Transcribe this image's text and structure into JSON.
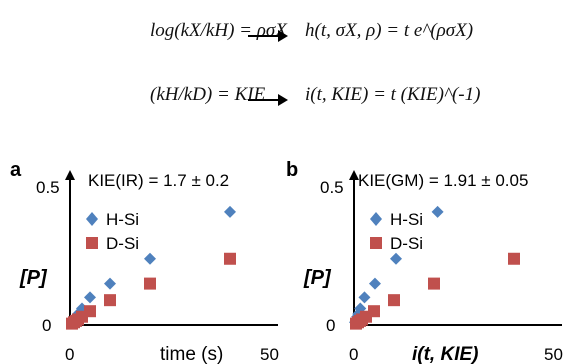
{
  "equations": {
    "eq1_lhs": "log(kX/kH) = ρσX",
    "eq1_rhs": "h(t, σX, ρ) = t e^(ρσX)",
    "eq2_lhs": "(kH/kD) = KIE",
    "eq2_rhs": "i(t, KIE) = t (KIE)^(-1)"
  },
  "legend": {
    "h": "H-Si",
    "d": "D-Si"
  },
  "colors": {
    "h": "#4f81bd",
    "d": "#c0504d"
  },
  "chart_data": [
    {
      "type": "scatter",
      "panel": "a",
      "title": "KIE(IR) = 1.7 ± 0.2",
      "xlabel": "time (s)",
      "ylabel": "[P]",
      "x_ticks": [
        "0",
        "50"
      ],
      "y_ticks": [
        "0",
        "0.5"
      ],
      "xlim": [
        0,
        50
      ],
      "ylim": [
        0,
        0.5
      ],
      "series": [
        {
          "name": "H-Si",
          "marker": "diamond",
          "x": [
            0.5,
            1,
            1.5,
            2,
            3,
            5,
            10,
            20,
            40
          ],
          "y": [
            0.01,
            0.02,
            0.03,
            0.04,
            0.06,
            0.1,
            0.15,
            0.24,
            0.41
          ]
        },
        {
          "name": "D-Si",
          "marker": "square",
          "x": [
            0.5,
            1,
            1.5,
            2,
            3,
            5,
            10,
            20,
            40
          ],
          "y": [
            0.005,
            0.01,
            0.015,
            0.02,
            0.03,
            0.05,
            0.09,
            0.15,
            0.24
          ]
        }
      ]
    },
    {
      "type": "scatter",
      "panel": "b",
      "title": "KIE(GM) = 1.91 ± 0.05",
      "xlabel": "i(t, KIE)",
      "ylabel": "[P]",
      "x_ticks": [
        "0",
        "50"
      ],
      "y_ticks": [
        "0",
        "0.5"
      ],
      "xlim": [
        0,
        50
      ],
      "ylim": [
        0,
        0.5
      ],
      "series": [
        {
          "name": "H-Si",
          "marker": "diamond",
          "x": [
            0.26,
            0.52,
            0.79,
            1.05,
            1.57,
            2.62,
            5.24,
            10.5,
            20.9
          ],
          "y": [
            0.01,
            0.02,
            0.03,
            0.04,
            0.06,
            0.1,
            0.15,
            0.24,
            0.41
          ]
        },
        {
          "name": "D-Si",
          "marker": "square",
          "x": [
            0.5,
            1,
            1.5,
            2,
            3,
            5,
            10,
            20,
            40
          ],
          "y": [
            0.005,
            0.01,
            0.015,
            0.02,
            0.03,
            0.05,
            0.09,
            0.15,
            0.24
          ]
        }
      ]
    }
  ]
}
